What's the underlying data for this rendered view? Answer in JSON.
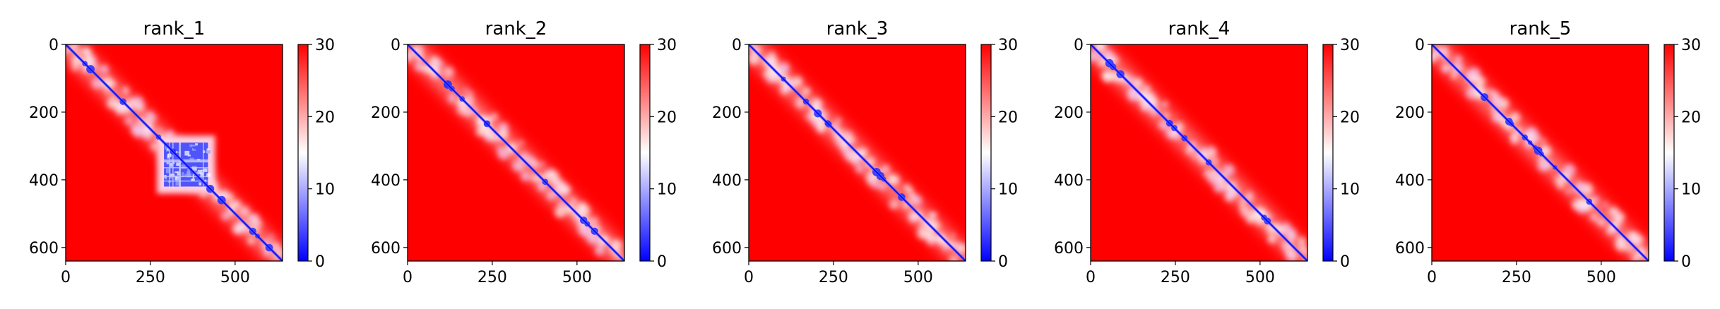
{
  "chart_data": [
    {
      "type": "heatmap",
      "title": "rank_1",
      "matrix_size": 640,
      "x_ticks": [
        0,
        250,
        500
      ],
      "y_ticks": [
        0,
        200,
        400,
        600
      ],
      "colorbar": {
        "min": 0,
        "max": 30,
        "ticks": [
          0,
          10,
          20,
          30
        ],
        "colormap": "bwr",
        "colors": [
          "#0000ff",
          "#ffffff",
          "#ff0000"
        ]
      },
      "features": {
        "diagonal": "low (blue)",
        "blue_block": [
          290,
          420
        ],
        "off_diagonal": "high (red)"
      }
    },
    {
      "type": "heatmap",
      "title": "rank_2",
      "matrix_size": 640,
      "x_ticks": [
        0,
        250,
        500
      ],
      "y_ticks": [
        0,
        200,
        400,
        600
      ],
      "colorbar": {
        "min": 0,
        "max": 30,
        "ticks": [
          0,
          10,
          20,
          30
        ],
        "colormap": "bwr",
        "colors": [
          "#0000ff",
          "#ffffff",
          "#ff0000"
        ]
      },
      "features": {
        "diagonal": "low (blue)",
        "off_diagonal": "high (red)"
      }
    },
    {
      "type": "heatmap",
      "title": "rank_3",
      "matrix_size": 640,
      "x_ticks": [
        0,
        250,
        500
      ],
      "y_ticks": [
        0,
        200,
        400,
        600
      ],
      "colorbar": {
        "min": 0,
        "max": 30,
        "ticks": [
          0,
          10,
          20,
          30
        ],
        "colormap": "bwr",
        "colors": [
          "#0000ff",
          "#ffffff",
          "#ff0000"
        ]
      },
      "features": {
        "diagonal": "low (blue)",
        "off_diagonal": "high (red)"
      }
    },
    {
      "type": "heatmap",
      "title": "rank_4",
      "matrix_size": 640,
      "x_ticks": [
        0,
        250,
        500
      ],
      "y_ticks": [
        0,
        200,
        400,
        600
      ],
      "colorbar": {
        "min": 0,
        "max": 30,
        "ticks": [
          0,
          10,
          20,
          30
        ],
        "colormap": "bwr",
        "colors": [
          "#0000ff",
          "#ffffff",
          "#ff0000"
        ]
      },
      "features": {
        "diagonal": "low (blue)",
        "off_diagonal": "high (red)"
      }
    },
    {
      "type": "heatmap",
      "title": "rank_5",
      "matrix_size": 640,
      "x_ticks": [
        0,
        250,
        500
      ],
      "y_ticks": [
        0,
        200,
        400,
        600
      ],
      "colorbar": {
        "min": 0,
        "max": 30,
        "ticks": [
          0,
          10,
          20,
          30
        ],
        "colormap": "bwr",
        "colors": [
          "#0000ff",
          "#ffffff",
          "#ff0000"
        ]
      },
      "features": {
        "diagonal": "low (blue)",
        "off_diagonal": "high (red)"
      }
    }
  ]
}
